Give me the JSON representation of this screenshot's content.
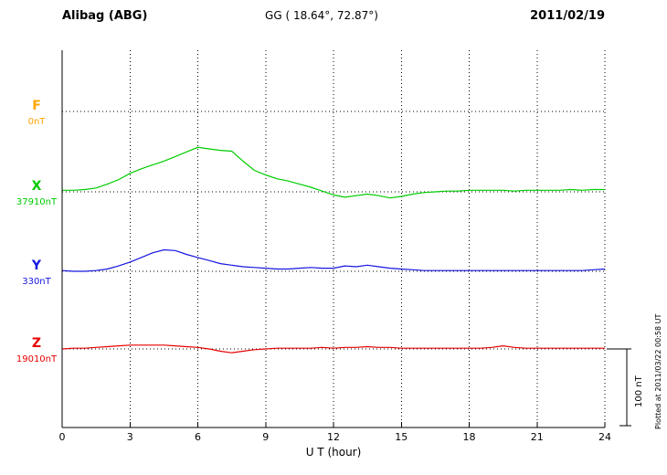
{
  "chart_data": {
    "type": "line",
    "title": "Alibag (ABG)",
    "subtitle": "GG ( 18.64°, 72.87°)",
    "date": "2011/02/19",
    "xlabel": "U T (hour)",
    "ylabel": "",
    "x_range": [
      0,
      24
    ],
    "x_ticks": [
      0,
      3,
      6,
      9,
      12,
      15,
      18,
      21,
      24
    ],
    "grid": "dotted horizontal baselines and vertical lines every 3 hours",
    "legend_position": "left margin, one colored letter per trace",
    "scale_bar": {
      "label": "100 nT",
      "nT": 100
    },
    "footnote": "Plotted at 2011/03/22 00:58 UT",
    "units": "nT offset from baseline",
    "series": [
      {
        "name": "F",
        "color": "#ffa500",
        "baseline_label": "0nT",
        "baseline_nT": 0,
        "points": []
      },
      {
        "name": "X",
        "color": "#00cc00",
        "baseline_label": "37910nT",
        "baseline_nT": 37910,
        "points": [
          [
            0,
            2
          ],
          [
            0.5,
            2
          ],
          [
            1,
            3
          ],
          [
            1.5,
            5
          ],
          [
            2,
            10
          ],
          [
            2.5,
            16
          ],
          [
            3,
            24
          ],
          [
            3.5,
            30
          ],
          [
            4,
            35
          ],
          [
            4.5,
            40
          ],
          [
            5,
            46
          ],
          [
            5.5,
            52
          ],
          [
            6,
            58
          ],
          [
            6.5,
            56
          ],
          [
            7,
            54
          ],
          [
            7.5,
            53
          ],
          [
            8,
            40
          ],
          [
            8.5,
            28
          ],
          [
            9,
            22
          ],
          [
            9.5,
            17
          ],
          [
            10,
            14
          ],
          [
            10.5,
            10
          ],
          [
            11,
            6
          ],
          [
            11.5,
            1
          ],
          [
            12,
            -4
          ],
          [
            12.5,
            -7
          ],
          [
            13,
            -5
          ],
          [
            13.5,
            -3
          ],
          [
            14,
            -5
          ],
          [
            14.5,
            -8
          ],
          [
            15,
            -6
          ],
          [
            15.5,
            -3
          ],
          [
            16,
            -1
          ],
          [
            16.5,
            0
          ],
          [
            17,
            1
          ],
          [
            17.5,
            1
          ],
          [
            18,
            2
          ],
          [
            18.5,
            2
          ],
          [
            19,
            2
          ],
          [
            19.5,
            2
          ],
          [
            20,
            1
          ],
          [
            20.5,
            2
          ],
          [
            21,
            2
          ],
          [
            21.5,
            2
          ],
          [
            22,
            2
          ],
          [
            22.5,
            3
          ],
          [
            23,
            2
          ],
          [
            23.5,
            3
          ],
          [
            24,
            3
          ]
        ]
      },
      {
        "name": "Y",
        "color": "#1515e0",
        "baseline_label": "330nT",
        "baseline_nT": 330,
        "points": [
          [
            0,
            1
          ],
          [
            0.5,
            0
          ],
          [
            1,
            0
          ],
          [
            1.5,
            1
          ],
          [
            2,
            3
          ],
          [
            2.5,
            7
          ],
          [
            3,
            12
          ],
          [
            3.5,
            18
          ],
          [
            4,
            24
          ],
          [
            4.5,
            28
          ],
          [
            5,
            27
          ],
          [
            5.5,
            22
          ],
          [
            6,
            18
          ],
          [
            6.5,
            14
          ],
          [
            7,
            10
          ],
          [
            7.5,
            8
          ],
          [
            8,
            6
          ],
          [
            8.5,
            5
          ],
          [
            9,
            4
          ],
          [
            9.5,
            3
          ],
          [
            10,
            3
          ],
          [
            10.5,
            4
          ],
          [
            11,
            5
          ],
          [
            11.5,
            4
          ],
          [
            12,
            4
          ],
          [
            12.5,
            7
          ],
          [
            13,
            6
          ],
          [
            13.5,
            8
          ],
          [
            14,
            6
          ],
          [
            14.5,
            4
          ],
          [
            15,
            3
          ],
          [
            15.5,
            2
          ],
          [
            16,
            1
          ],
          [
            16.5,
            1
          ],
          [
            17,
            1
          ],
          [
            17.5,
            1
          ],
          [
            18,
            1
          ],
          [
            18.5,
            1
          ],
          [
            19,
            1
          ],
          [
            19.5,
            1
          ],
          [
            20,
            1
          ],
          [
            20.5,
            1
          ],
          [
            21,
            1
          ],
          [
            21.5,
            1
          ],
          [
            22,
            1
          ],
          [
            22.5,
            1
          ],
          [
            23,
            1
          ],
          [
            23.5,
            2
          ],
          [
            24,
            3
          ]
        ]
      },
      {
        "name": "Z",
        "color": "#e60000",
        "baseline_label": "19010nT",
        "baseline_nT": 19010,
        "points": [
          [
            0,
            0
          ],
          [
            0.5,
            1
          ],
          [
            1,
            1
          ],
          [
            1.5,
            2
          ],
          [
            2,
            3
          ],
          [
            2.5,
            4
          ],
          [
            3,
            5
          ],
          [
            3.5,
            5
          ],
          [
            4,
            5
          ],
          [
            4.5,
            5
          ],
          [
            5,
            4
          ],
          [
            5.5,
            3
          ],
          [
            6,
            2
          ],
          [
            6.5,
            0
          ],
          [
            7,
            -3
          ],
          [
            7.5,
            -5
          ],
          [
            8,
            -3
          ],
          [
            8.5,
            -1
          ],
          [
            9,
            0
          ],
          [
            9.5,
            1
          ],
          [
            10,
            1
          ],
          [
            10.5,
            1
          ],
          [
            11,
            1
          ],
          [
            11.5,
            2
          ],
          [
            12,
            1
          ],
          [
            12.5,
            2
          ],
          [
            13,
            2
          ],
          [
            13.5,
            3
          ],
          [
            14,
            2
          ],
          [
            14.5,
            2
          ],
          [
            15,
            1
          ],
          [
            15.5,
            1
          ],
          [
            16,
            1
          ],
          [
            16.5,
            1
          ],
          [
            17,
            1
          ],
          [
            17.5,
            1
          ],
          [
            18,
            1
          ],
          [
            18.5,
            1
          ],
          [
            19,
            2
          ],
          [
            19.5,
            4
          ],
          [
            20,
            2
          ],
          [
            20.5,
            1
          ],
          [
            21,
            1
          ],
          [
            21.5,
            1
          ],
          [
            22,
            1
          ],
          [
            22.5,
            1
          ],
          [
            23,
            1
          ],
          [
            23.5,
            1
          ],
          [
            24,
            1
          ]
        ]
      }
    ]
  }
}
